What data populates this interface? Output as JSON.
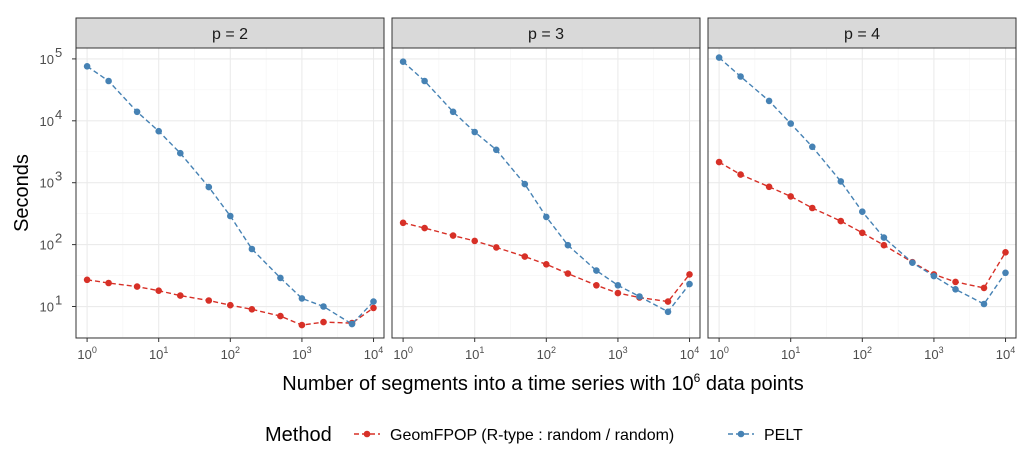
{
  "chart_data": {
    "type": "line",
    "facets": [
      "p = 2",
      "p = 3",
      "p = 4"
    ],
    "xlabel": "Number of segments into a time series with 10^6 data points",
    "xlabel_parts": {
      "before": "Number of segments into a time series with 10",
      "sup": "6",
      "after": " data points"
    },
    "ylabel": "Seconds",
    "x_scale": "log10",
    "y_scale": "log10",
    "xlim": [
      0.7,
      14000
    ],
    "ylim": [
      3.1,
      150000
    ],
    "x_ticks": [
      {
        "value": 1,
        "base": "10",
        "exp": "0"
      },
      {
        "value": 10,
        "base": "10",
        "exp": "1"
      },
      {
        "value": 100,
        "base": "10",
        "exp": "2"
      },
      {
        "value": 1000,
        "base": "10",
        "exp": "3"
      },
      {
        "value": 10000,
        "base": "10",
        "exp": "4"
      }
    ],
    "y_ticks": [
      {
        "value": 10,
        "base": "10",
        "exp": "1"
      },
      {
        "value": 100,
        "base": "10",
        "exp": "2"
      },
      {
        "value": 1000,
        "base": "10",
        "exp": "3"
      },
      {
        "value": 10000,
        "base": "10",
        "exp": "4"
      },
      {
        "value": 100000,
        "base": "10",
        "exp": "5"
      }
    ],
    "x": [
      1,
      2,
      5,
      10,
      20,
      50,
      100,
      200,
      500,
      1000,
      2000,
      5000,
      10000
    ],
    "grid": true,
    "legend": {
      "title": "Method",
      "position": "bottom",
      "entries": [
        {
          "label": "GeomFPOP (R-type : random / random)",
          "color": "#d73027"
        },
        {
          "label": "PELT",
          "color": "#4682b4"
        }
      ]
    },
    "panels": [
      {
        "label": "p = 2",
        "series": [
          {
            "name": "GeomFPOP (R-type : random / random)",
            "color": "#d73027",
            "values": [
              27,
              24,
              21,
              18,
              15,
              12.5,
              10.5,
              9,
              7,
              5,
              5.6,
              5.4,
              9.5
            ]
          },
          {
            "name": "PELT",
            "color": "#4682b4",
            "values": [
              76000,
              44000,
              14000,
              6800,
              3000,
              850,
              290,
              85,
              29,
              13.5,
              10,
              5.2,
              12
            ]
          }
        ]
      },
      {
        "label": "p = 3",
        "series": [
          {
            "name": "GeomFPOP (R-type : random / random)",
            "color": "#d73027",
            "values": [
              225,
              185,
              140,
              115,
              90,
              64,
              48,
              34,
              22,
              16.5,
              14,
              12,
              33
            ]
          },
          {
            "name": "PELT",
            "color": "#4682b4",
            "values": [
              90000,
              44000,
              14000,
              6600,
              3400,
              950,
              280,
              98,
              38,
              22,
              14.5,
              8.2,
              23
            ]
          }
        ]
      },
      {
        "label": "p = 4",
        "series": [
          {
            "name": "GeomFPOP (R-type : random / random)",
            "color": "#d73027",
            "values": [
              2150,
              1350,
              860,
              600,
              390,
              240,
              155,
              98,
              52,
              33,
              25,
              20,
              75
            ]
          },
          {
            "name": "PELT",
            "color": "#4682b4",
            "values": [
              105000,
              52000,
              21000,
              9000,
              3800,
              1050,
              340,
              130,
              51,
              31,
              19,
              11,
              35
            ]
          }
        ]
      }
    ]
  }
}
